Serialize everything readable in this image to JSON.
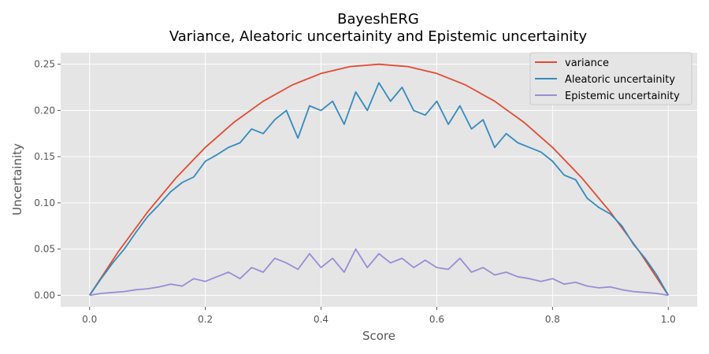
{
  "chart_data": {
    "type": "line",
    "title": "BayeshERG",
    "subtitle": "Variance, Aleatoric uncertainity and Epistemic uncertainity",
    "xlabel": "Score",
    "ylabel": "Uncertainity",
    "xlim": [
      -0.05,
      1.05
    ],
    "ylim": [
      -0.0125,
      0.2625
    ],
    "x_ticks": [
      0.0,
      0.2,
      0.4,
      0.6,
      0.8,
      1.0
    ],
    "x_tick_labels": [
      "0.0",
      "0.2",
      "0.4",
      "0.6",
      "0.8",
      "1.0"
    ],
    "y_ticks": [
      0.0,
      0.05,
      0.1,
      0.15,
      0.2,
      0.25
    ],
    "y_tick_labels": [
      "0.00",
      "0.05",
      "0.10",
      "0.15",
      "0.20",
      "0.25"
    ],
    "grid": true,
    "legend_position": "top-right",
    "series": [
      {
        "name": "variance",
        "color": "#E24A33",
        "x": [
          0.0,
          0.05,
          0.1,
          0.15,
          0.2,
          0.25,
          0.3,
          0.35,
          0.4,
          0.45,
          0.5,
          0.55,
          0.6,
          0.65,
          0.7,
          0.75,
          0.8,
          0.85,
          0.9,
          0.95,
          1.0
        ],
        "values": [
          0.0,
          0.0475,
          0.09,
          0.1275,
          0.16,
          0.1875,
          0.21,
          0.2275,
          0.24,
          0.2475,
          0.25,
          0.2475,
          0.24,
          0.2275,
          0.21,
          0.1875,
          0.16,
          0.1275,
          0.09,
          0.0475,
          0.0
        ]
      },
      {
        "name": "Aleatoric uncertainity",
        "color": "#348ABD",
        "x": [
          0.0,
          0.02,
          0.04,
          0.06,
          0.08,
          0.1,
          0.12,
          0.14,
          0.16,
          0.18,
          0.2,
          0.22,
          0.24,
          0.26,
          0.28,
          0.3,
          0.32,
          0.34,
          0.36,
          0.38,
          0.4,
          0.42,
          0.44,
          0.46,
          0.48,
          0.5,
          0.52,
          0.54,
          0.56,
          0.58,
          0.6,
          0.62,
          0.64,
          0.66,
          0.68,
          0.7,
          0.72,
          0.74,
          0.76,
          0.78,
          0.8,
          0.82,
          0.84,
          0.86,
          0.88,
          0.9,
          0.92,
          0.94,
          0.96,
          0.98,
          1.0
        ],
        "values": [
          0.0,
          0.018,
          0.035,
          0.05,
          0.068,
          0.085,
          0.098,
          0.112,
          0.122,
          0.128,
          0.145,
          0.152,
          0.16,
          0.165,
          0.18,
          0.175,
          0.19,
          0.2,
          0.17,
          0.205,
          0.2,
          0.21,
          0.185,
          0.22,
          0.2,
          0.23,
          0.21,
          0.225,
          0.2,
          0.195,
          0.21,
          0.185,
          0.205,
          0.18,
          0.19,
          0.16,
          0.175,
          0.165,
          0.16,
          0.155,
          0.145,
          0.13,
          0.125,
          0.105,
          0.095,
          0.088,
          0.075,
          0.055,
          0.04,
          0.022,
          0.0
        ]
      },
      {
        "name": "Epistemic uncertainity",
        "color": "#988ED5",
        "x": [
          0.0,
          0.02,
          0.04,
          0.06,
          0.08,
          0.1,
          0.12,
          0.14,
          0.16,
          0.18,
          0.2,
          0.22,
          0.24,
          0.26,
          0.28,
          0.3,
          0.32,
          0.34,
          0.36,
          0.38,
          0.4,
          0.42,
          0.44,
          0.46,
          0.48,
          0.5,
          0.52,
          0.54,
          0.56,
          0.58,
          0.6,
          0.62,
          0.64,
          0.66,
          0.68,
          0.7,
          0.72,
          0.74,
          0.76,
          0.78,
          0.8,
          0.82,
          0.84,
          0.86,
          0.88,
          0.9,
          0.92,
          0.94,
          0.96,
          0.98,
          1.0
        ],
        "values": [
          0.0,
          0.002,
          0.003,
          0.004,
          0.006,
          0.007,
          0.009,
          0.012,
          0.01,
          0.018,
          0.015,
          0.02,
          0.025,
          0.018,
          0.03,
          0.025,
          0.04,
          0.035,
          0.028,
          0.045,
          0.03,
          0.04,
          0.025,
          0.05,
          0.03,
          0.045,
          0.035,
          0.04,
          0.03,
          0.038,
          0.03,
          0.028,
          0.04,
          0.025,
          0.03,
          0.022,
          0.025,
          0.02,
          0.018,
          0.015,
          0.018,
          0.012,
          0.014,
          0.01,
          0.008,
          0.009,
          0.006,
          0.004,
          0.003,
          0.002,
          0.0
        ]
      }
    ]
  }
}
